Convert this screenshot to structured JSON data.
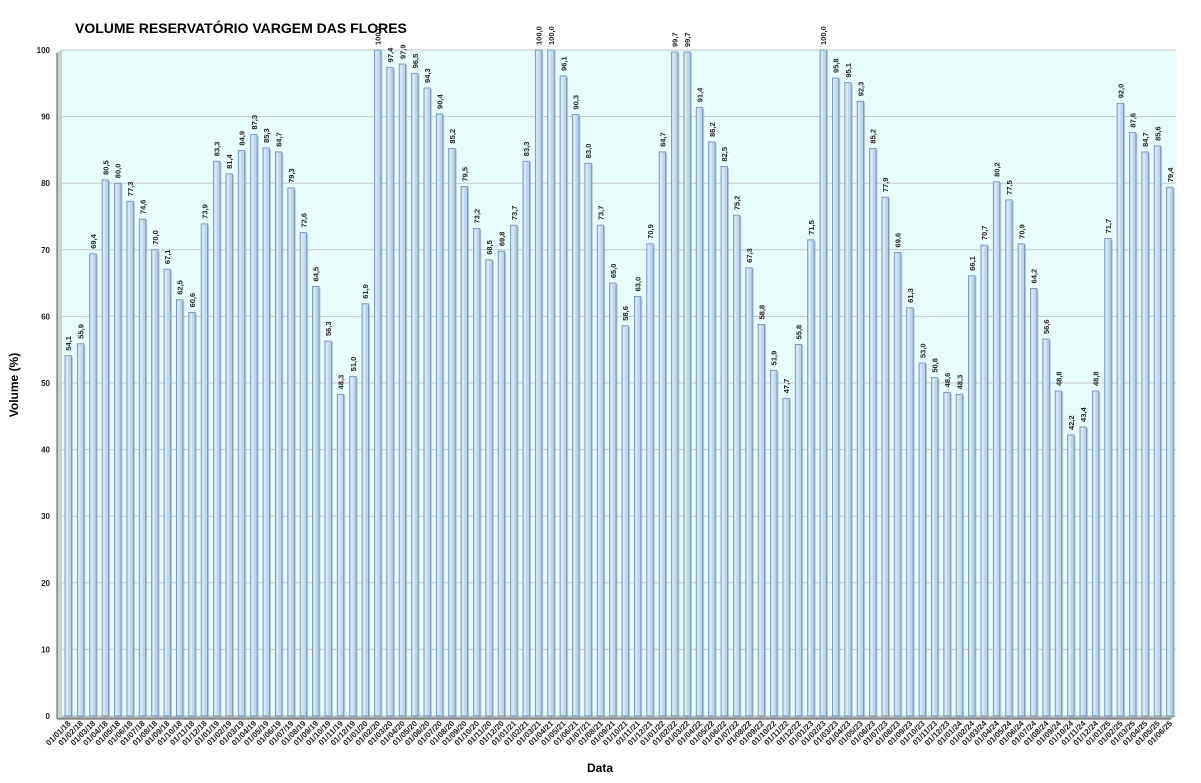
{
  "chart_data": {
    "type": "bar",
    "title": "VOLUME RESERVATÓRIO VARGEM DAS FLORES",
    "xlabel": "Data",
    "ylabel": "Volume (%)",
    "ylim": [
      0,
      100
    ],
    "yticks": [
      0,
      10,
      20,
      30,
      40,
      50,
      60,
      70,
      80,
      90,
      100
    ],
    "grid": true,
    "colors": {
      "plot_background": "#e8fcfc",
      "bar_fill": "#bcd6ee",
      "bar_edge": "#6f8fb2",
      "gridline": "#c8c8c8"
    },
    "categories": [
      "01/01/18",
      "01/02/18",
      "01/03/18",
      "01/04/18",
      "01/05/18",
      "01/06/18",
      "01/07/18",
      "01/08/18",
      "01/09/18",
      "01/10/18",
      "01/11/18",
      "01/12/18",
      "01/01/19",
      "01/02/19",
      "01/03/19",
      "01/04/19",
      "01/05/19",
      "01/06/19",
      "01/07/19",
      "01/08/19",
      "01/09/19",
      "01/10/19",
      "01/11/19",
      "01/12/19",
      "01/01/20",
      "01/02/20",
      "01/03/20",
      "01/04/20",
      "01/05/20",
      "01/06/20",
      "01/07/20",
      "01/08/20",
      "01/09/20",
      "01/10/20",
      "01/11/20",
      "01/12/20",
      "01/01/21",
      "01/02/21",
      "01/03/21",
      "01/04/21",
      "01/05/21",
      "01/06/21",
      "01/07/21",
      "01/08/21",
      "01/09/21",
      "01/10/21",
      "01/11/21",
      "01/12/21",
      "01/01/22",
      "01/02/22",
      "01/03/22",
      "01/04/22",
      "01/05/22",
      "01/06/22",
      "01/07/22",
      "01/08/22",
      "01/09/22",
      "01/10/22",
      "01/11/22",
      "01/12/22",
      "01/01/23",
      "01/02/23",
      "01/03/23",
      "01/04/23",
      "01/05/23",
      "01/06/23",
      "01/07/23",
      "01/08/23",
      "01/09/23",
      "01/10/23",
      "01/11/23",
      "01/12/23",
      "01/01/24",
      "01/02/24",
      "01/03/24",
      "01/04/24",
      "01/05/24",
      "01/06/24",
      "01/07/24",
      "01/08/24",
      "01/09/24",
      "01/10/24",
      "01/11/24",
      "01/12/24",
      "01/01/25",
      "01/02/25",
      "01/03/25",
      "01/04/25",
      "01/05/25",
      "01/06/25"
    ],
    "values": [
      54.1,
      55.9,
      69.4,
      80.5,
      80.0,
      77.3,
      74.6,
      70.0,
      67.1,
      62.5,
      60.6,
      73.9,
      83.3,
      81.4,
      84.9,
      87.3,
      85.3,
      84.7,
      79.3,
      72.6,
      64.5,
      56.3,
      48.3,
      51.0,
      61.9,
      100.0,
      97.4,
      97.9,
      96.5,
      94.3,
      90.4,
      85.2,
      79.5,
      73.2,
      68.5,
      69.8,
      73.7,
      83.3,
      100.0,
      100.0,
      96.1,
      90.3,
      83.0,
      73.7,
      65.0,
      58.6,
      63.0,
      70.9,
      84.7,
      99.7,
      99.7,
      91.4,
      86.2,
      82.5,
      75.2,
      67.3,
      58.8,
      51.9,
      47.7,
      55.8,
      71.5,
      100.0,
      95.8,
      95.1,
      92.3,
      85.2,
      77.9,
      69.6,
      61.3,
      53.0,
      50.8,
      48.6,
      48.3,
      66.1,
      70.7,
      80.2,
      77.5,
      70.9,
      64.2,
      56.6,
      48.8,
      42.2,
      43.4,
      48.8,
      71.7,
      92.0,
      87.6,
      84.7,
      85.6,
      79.4
    ],
    "labels": [
      "54,1",
      "55,9",
      "69,4",
      "80,5",
      "80,0",
      "77,3",
      "74,6",
      "70,0",
      "67,1",
      "62,5",
      "60,6",
      "73,9",
      "83,3",
      "81,4",
      "84,9",
      "87,3",
      "85,3",
      "84,7",
      "79,3",
      "72,6",
      "64,5",
      "56,3",
      "48,3",
      "51,0",
      "61,9",
      "100,0",
      "97,4",
      "97,9",
      "96,5",
      "94,3",
      "90,4",
      "85,2",
      "79,5",
      "73,2",
      "68,5",
      "69,8",
      "73,7",
      "83,3",
      "100,0",
      "100,0",
      "96,1",
      "90,3",
      "83,0",
      "73,7",
      "65,0",
      "58,6",
      "63,0",
      "70,9",
      "84,7",
      "99,7",
      "99,7",
      "91,4",
      "86,2",
      "82,5",
      "75,2",
      "67,3",
      "58,8",
      "51,9",
      "47,7",
      "55,8",
      "71,5",
      "100,0",
      "95,8",
      "95,1",
      "92,3",
      "85,2",
      "77,9",
      "69,6",
      "61,3",
      "53,0",
      "50,8",
      "48,6",
      "48,3",
      "66,1",
      "70,7",
      "80,2",
      "77,5",
      "70,9",
      "64,2",
      "56,6",
      "48,8",
      "42,2",
      "43,4",
      "48,8",
      "71,7",
      "92,0",
      "87,6",
      "84,7",
      "85,6",
      "79,4"
    ]
  }
}
